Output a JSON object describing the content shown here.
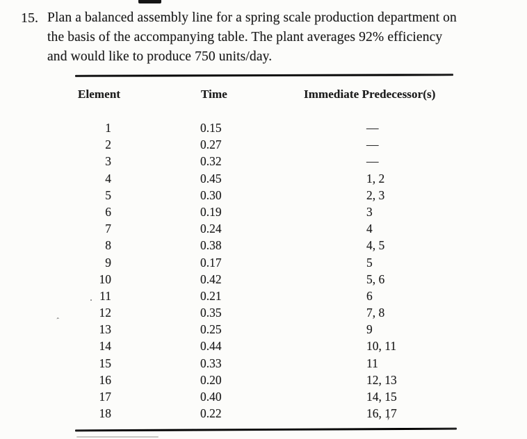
{
  "page": {
    "background": "#fcfcfa",
    "ink_color": "#1c1c1c"
  },
  "problem": {
    "number": "15.",
    "lines": [
      "Plan a balanced assembly line for a spring scale production department on",
      "the basis of the accompanying table. The plant averages 92% efficiency",
      "and would like to produce 750 units/day."
    ]
  },
  "table": {
    "headers": [
      "Element",
      "Time",
      "Immediate Predecessor(s)"
    ],
    "rows": [
      {
        "element": "1",
        "time": "0.15",
        "pred": "—"
      },
      {
        "element": "2",
        "time": "0.27",
        "pred": "—"
      },
      {
        "element": "3",
        "time": "0.32",
        "pred": "—"
      },
      {
        "element": "4",
        "time": "0.45",
        "pred": "1, 2"
      },
      {
        "element": "5",
        "time": "0.30",
        "pred": "2, 3"
      },
      {
        "element": "6",
        "time": "0.19",
        "pred": "3"
      },
      {
        "element": "7",
        "time": "0.24",
        "pred": "4"
      },
      {
        "element": "8",
        "time": "0.38",
        "pred": "4, 5"
      },
      {
        "element": "9",
        "time": "0.17",
        "pred": "5"
      },
      {
        "element": "10",
        "time": "0.42",
        "pred": "5, 6"
      },
      {
        "element": "11",
        "time": "0.21",
        "pred": "6"
      },
      {
        "element": "12",
        "time": "0.35",
        "pred": "7, 8"
      },
      {
        "element": "13",
        "time": "0.25",
        "pred": "9"
      },
      {
        "element": "14",
        "time": "0.44",
        "pred": "10, 11"
      },
      {
        "element": "15",
        "time": "0.33",
        "pred": "11"
      },
      {
        "element": "16",
        "time": "0.20",
        "pred": "12, 13"
      },
      {
        "element": "17",
        "time": "0.40",
        "pred": "14, 15"
      },
      {
        "element": "18",
        "time": "0.22",
        "pred": "16, 17"
      }
    ]
  },
  "artifacts": {
    "caret_mark": "ˆ",
    "stray_comma": ","
  }
}
